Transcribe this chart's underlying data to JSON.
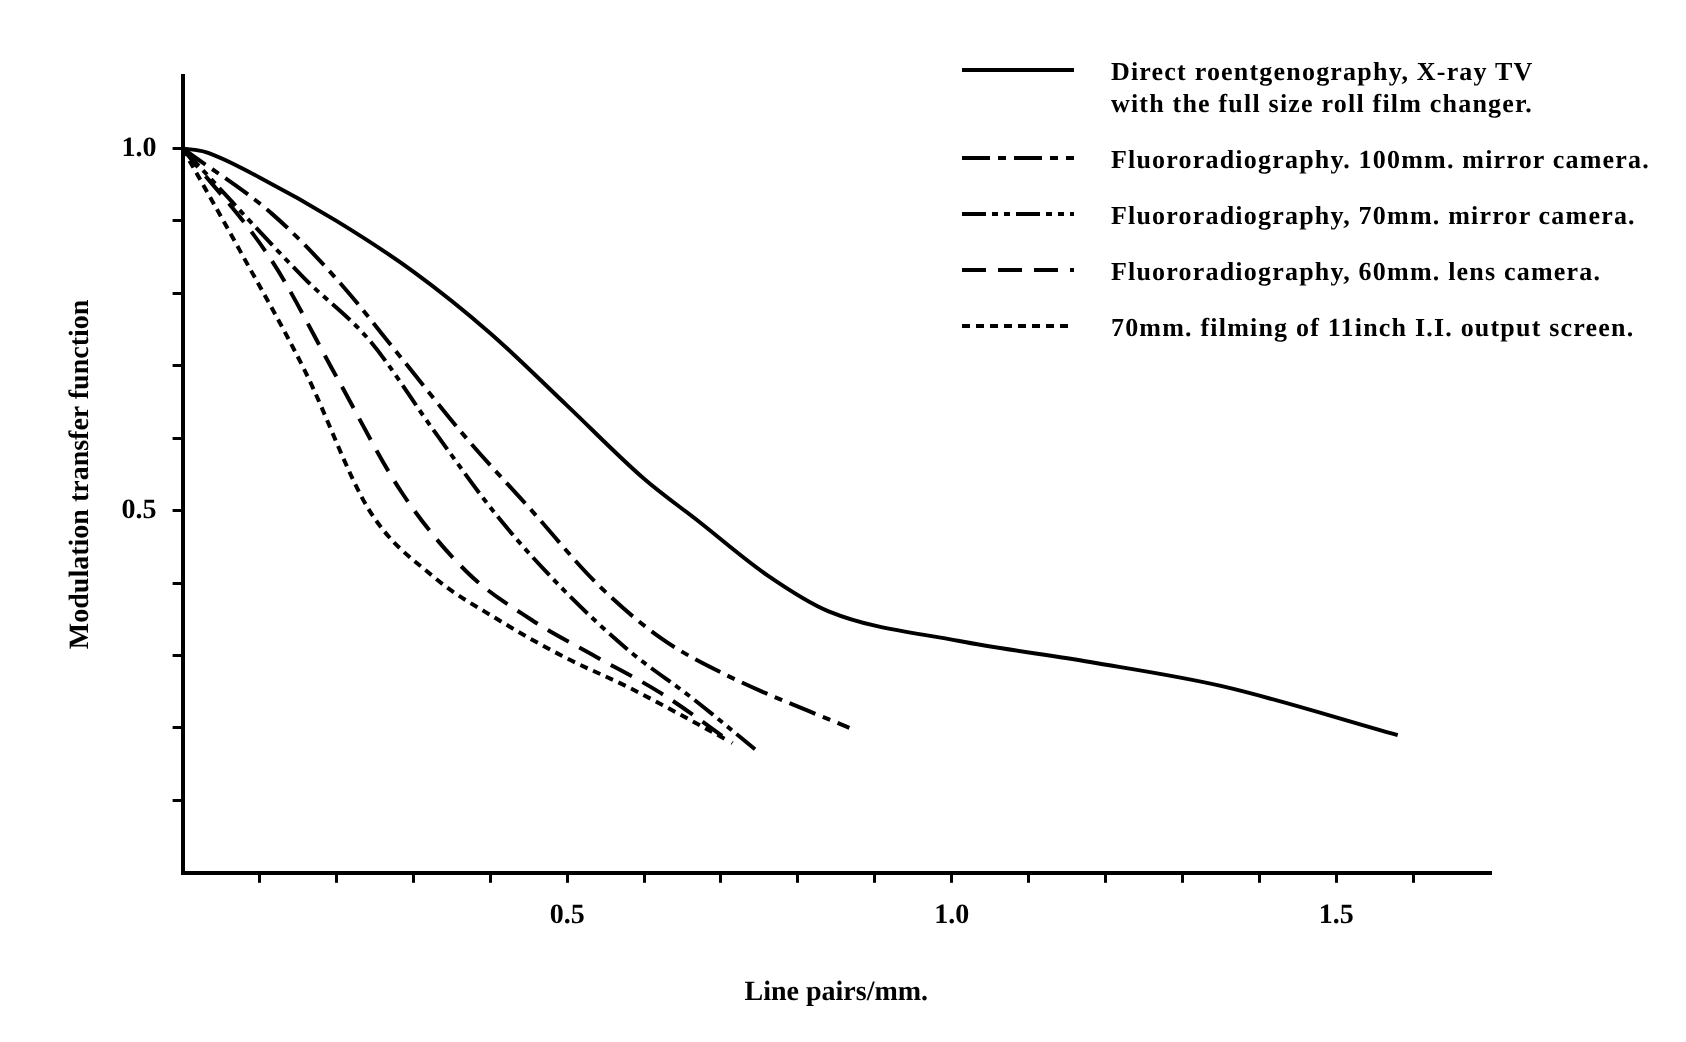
{
  "chart_data": {
    "type": "line",
    "xlabel": "Line pairs/mm.",
    "ylabel": "Modulation transfer function",
    "xlim": [
      0,
      1.7
    ],
    "ylim": [
      0,
      1.1
    ],
    "xticks": [
      {
        "value": 0.1,
        "label": null
      },
      {
        "value": 0.2,
        "label": null
      },
      {
        "value": 0.3,
        "label": null
      },
      {
        "value": 0.4,
        "label": null
      },
      0.5,
      {
        "value": 0.6,
        "label": null
      },
      {
        "value": 0.7,
        "label": null
      },
      {
        "value": 0.8,
        "label": null
      },
      {
        "value": 0.9,
        "label": null
      },
      {
        "value": 1.0,
        "label": "1.0"
      },
      {
        "value": 1.1,
        "label": null
      },
      {
        "value": 1.2,
        "label": null
      },
      {
        "value": 1.3,
        "label": null
      },
      {
        "value": 1.4,
        "label": null
      },
      1.5,
      {
        "value": 1.6,
        "label": null
      }
    ],
    "yticks": [
      {
        "value": 0.1,
        "label": null
      },
      {
        "value": 0.2,
        "label": null
      },
      {
        "value": 0.3,
        "label": null
      },
      {
        "value": 0.4,
        "label": null
      },
      0.5,
      {
        "value": 0.6,
        "label": null
      },
      {
        "value": 0.7,
        "label": null
      },
      {
        "value": 0.8,
        "label": null
      },
      {
        "value": 0.9,
        "label": null
      },
      {
        "value": 1.0,
        "label": "1.0"
      }
    ],
    "grid": false,
    "legend": "top right",
    "marker": "none",
    "series": [
      {
        "name": "Direct roentgenography, X-ray TV\nwith the full size roll film changer.",
        "color": "#000000",
        "line_style": "solid",
        "x": [
          0,
          0.03,
          0.1,
          0.2,
          0.3,
          0.4,
          0.5,
          0.6,
          0.67,
          0.76,
          0.84,
          1.01,
          1.18,
          1.35,
          1.58
        ],
        "values": [
          1.0,
          0.995,
          0.96,
          0.9,
          0.83,
          0.745,
          0.645,
          0.544,
          0.486,
          0.411,
          0.361,
          0.32,
          0.291,
          0.258,
          0.19
        ]
      },
      {
        "name": "Fluororadiography. 100mm. mirror camera.",
        "color": "#000000",
        "line_style": "dashdot",
        "x": [
          0,
          0.116,
          0.2,
          0.285,
          0.369,
          0.454,
          0.538,
          0.622,
          0.707,
          0.867
        ],
        "values": [
          1.0,
          0.91,
          0.82,
          0.71,
          0.6,
          0.5,
          0.4,
          0.324,
          0.273,
          0.2
        ]
      },
      {
        "name": "Fluororadiography, 70mm. mirror camera.",
        "color": "#000000",
        "line_style": "dashdotdot",
        "x": [
          0,
          0.159,
          0.243,
          0.327,
          0.411,
          0.496,
          0.58,
          0.664,
          0.745
        ],
        "values": [
          1.0,
          0.82,
          0.735,
          0.61,
          0.49,
          0.39,
          0.307,
          0.24,
          0.17
        ]
      },
      {
        "name": "Fluororadiography, 60mm. lens camera.",
        "color": "#000000",
        "line_style": "dashed",
        "x": [
          0,
          0.116,
          0.2,
          0.285,
          0.369,
          0.454,
          0.538,
          0.622,
          0.715
        ],
        "values": [
          1.0,
          0.845,
          0.685,
          0.525,
          0.416,
          0.349,
          0.298,
          0.248,
          0.179
        ]
      },
      {
        "name": "70mm. filming of 11inch I.I. output screen.",
        "color": "#000000",
        "line_style": "dotted",
        "x": [
          0,
          0.074,
          0.159,
          0.243,
          0.327,
          0.411,
          0.496,
          0.58,
          0.705
        ],
        "values": [
          1.0,
          0.86,
          0.693,
          0.5,
          0.408,
          0.349,
          0.298,
          0.256,
          0.185
        ]
      }
    ]
  }
}
